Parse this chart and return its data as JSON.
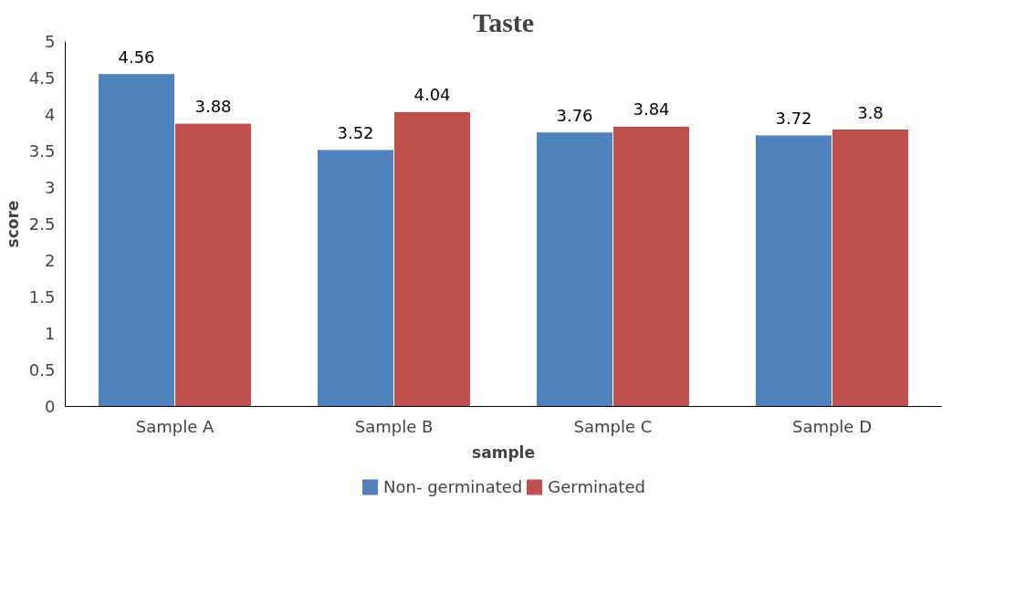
{
  "chart_data": {
    "type": "bar",
    "title": "Taste",
    "xlabel": "sample",
    "ylabel": "score",
    "categories": [
      "Sample A",
      "Sample B",
      "Sample C",
      "Sample D"
    ],
    "series": [
      {
        "name": "Non- germinated",
        "color": "#4f81bd",
        "values": [
          4.56,
          3.52,
          3.76,
          3.72
        ]
      },
      {
        "name": "Germinated",
        "color": "#c0504d",
        "values": [
          3.88,
          4.04,
          3.84,
          3.8
        ]
      }
    ],
    "ylim": [
      0,
      5
    ],
    "yticks": [
      0,
      0.5,
      1,
      1.5,
      2,
      2.5,
      3,
      3.5,
      4,
      4.5,
      5
    ],
    "data_labels": true,
    "legend": "bottom",
    "grid": false
  }
}
